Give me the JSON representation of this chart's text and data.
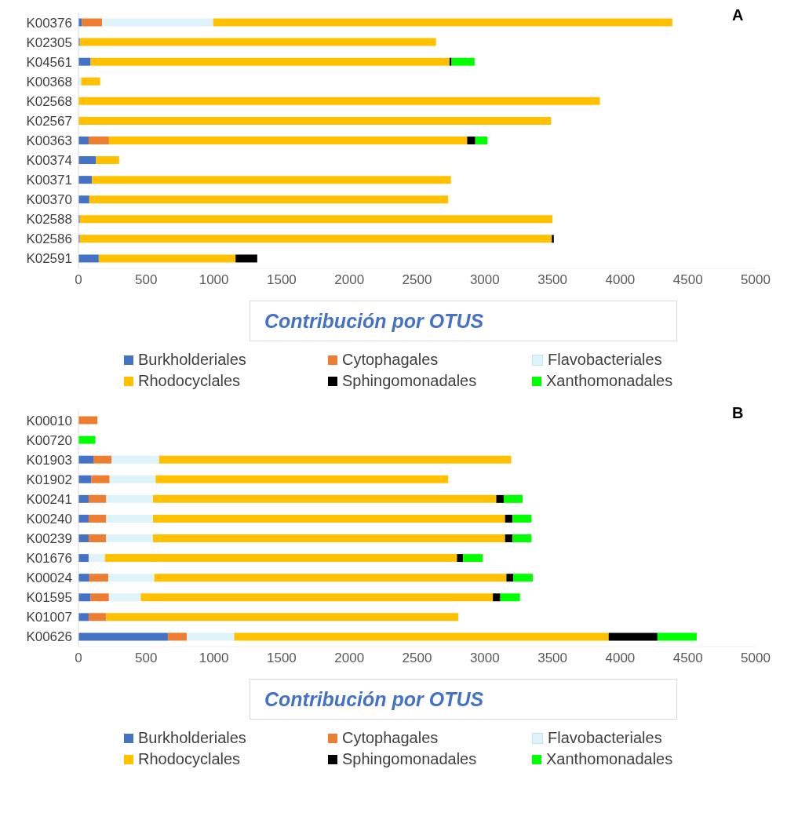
{
  "chart_data": [
    {
      "type": "bar",
      "orientation": "horizontal",
      "stacked": true,
      "title": "A",
      "xlabel": "Contribución por OTUS",
      "categories": [
        "K00376",
        "K02305",
        "K04561",
        "K00368",
        "K02568",
        "K02567",
        "K00363",
        "K00374",
        "K00371",
        "K00370",
        "K02588",
        "K02586",
        "K02591"
      ],
      "xlim": [
        0,
        5000
      ],
      "xticks": [
        0,
        500,
        1000,
        1500,
        2000,
        2500,
        3000,
        3500,
        4000,
        4500,
        5000
      ],
      "grid": false,
      "legend": "bottom",
      "series": [
        {
          "name": "Burkholderiales",
          "color": "#4472c4",
          "values": [
            25,
            10,
            90,
            null,
            null,
            null,
            75,
            130,
            100,
            80,
            10,
            10,
            150
          ]
        },
        {
          "name": "Cytophagales",
          "color": "#ed7d31",
          "values": [
            150,
            null,
            null,
            null,
            null,
            null,
            150,
            null,
            null,
            null,
            null,
            null,
            null
          ]
        },
        {
          "name": "Flavobacteriales",
          "color": "#dff3fb",
          "values": [
            820,
            null,
            null,
            20,
            null,
            null,
            null,
            null,
            null,
            null,
            null,
            null,
            null
          ]
        },
        {
          "name": "Rhodocyclales",
          "color": "#ffc000",
          "values": [
            3390,
            2630,
            2650,
            140,
            3850,
            3490,
            2645,
            170,
            2650,
            2650,
            3490,
            3485,
            1010
          ]
        },
        {
          "name": "Sphingomonadales",
          "color": "#000000",
          "values": [
            null,
            null,
            15,
            null,
            null,
            null,
            60,
            null,
            null,
            null,
            null,
            15,
            160
          ]
        },
        {
          "name": "Xanthomonadales",
          "color": "#00ff00",
          "values": [
            null,
            null,
            170,
            null,
            null,
            null,
            90,
            null,
            null,
            null,
            null,
            null,
            null
          ]
        }
      ]
    },
    {
      "type": "bar",
      "orientation": "horizontal",
      "stacked": true,
      "title": "B",
      "xlabel": "Contribución por OTUS",
      "categories": [
        "K00010",
        "K00720",
        "K01903",
        "K01902",
        "K00241",
        "K00240",
        "K00239",
        "K01676",
        "K00024",
        "K01595",
        "K01007",
        "K00626"
      ],
      "xlim": [
        0,
        5000
      ],
      "xticks": [
        0,
        500,
        1000,
        1500,
        2000,
        2500,
        3000,
        3500,
        4000,
        4500,
        5000
      ],
      "grid": false,
      "legend": "bottom",
      "series": [
        {
          "name": "Burkholderiales",
          "color": "#4472c4",
          "values": [
            null,
            null,
            110,
            95,
            75,
            75,
            75,
            75,
            80,
            90,
            75,
            660
          ]
        },
        {
          "name": "Cytophagales",
          "color": "#ed7d31",
          "values": [
            140,
            null,
            135,
            135,
            130,
            130,
            130,
            null,
            140,
            135,
            130,
            140
          ]
        },
        {
          "name": "Flavobacteriales",
          "color": "#dff3fb",
          "values": [
            null,
            null,
            350,
            340,
            345,
            345,
            345,
            120,
            340,
            235,
            null,
            350
          ]
        },
        {
          "name": "Rhodocyclales",
          "color": "#ffc000",
          "values": [
            null,
            null,
            2600,
            2160,
            2535,
            2600,
            2600,
            2600,
            2600,
            2600,
            2600,
            2765
          ]
        },
        {
          "name": "Sphingomonadales",
          "color": "#000000",
          "values": [
            null,
            null,
            null,
            null,
            55,
            55,
            55,
            45,
            50,
            55,
            null,
            360
          ]
        },
        {
          "name": "Xanthomonadales",
          "color": "#00ff00",
          "values": [
            null,
            125,
            null,
            null,
            140,
            140,
            140,
            145,
            145,
            145,
            null,
            290
          ]
        }
      ]
    }
  ]
}
